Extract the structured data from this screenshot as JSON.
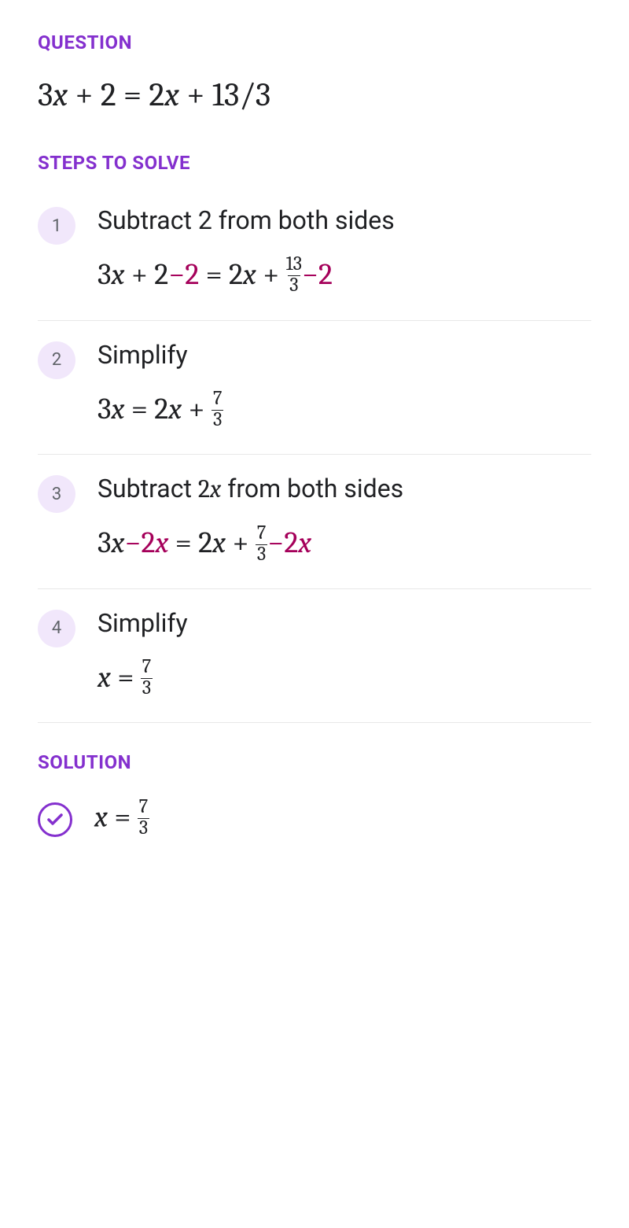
{
  "colors": {
    "label": "#8430ce",
    "text": "#202124",
    "highlight": "#a5005a",
    "badge_bg": "#f1e7fb",
    "badge_text": "#5f6368",
    "divider": "#e8e8e8",
    "check": "#8430ce",
    "background": "#ffffff"
  },
  "typography": {
    "label_fontsize": 24,
    "question_fontsize": 42,
    "step_title_fontsize": 32,
    "math_fontsize": 38,
    "badge_fontsize": 22
  },
  "question": {
    "label": "QUESTION",
    "math_parts": [
      {
        "t": "3",
        "hl": false
      },
      {
        "t": "x",
        "hl": false,
        "ital": true
      },
      {
        "t": " + 2 = 2",
        "hl": false
      },
      {
        "t": "x",
        "hl": false,
        "ital": true
      },
      {
        "t": " + 13/3",
        "hl": false
      }
    ]
  },
  "steps_label": "STEPS TO SOLVE",
  "steps": [
    {
      "n": "1",
      "title_parts": [
        {
          "t": "Subtract 2 from both sides",
          "math": false
        }
      ],
      "math_parts": [
        {
          "t": "3",
          "hl": false
        },
        {
          "t": "x",
          "hl": false,
          "ital": true
        },
        {
          "t": " + 2",
          "hl": false
        },
        {
          "t": "−2",
          "hl": true
        },
        {
          "t": " = 2",
          "hl": false
        },
        {
          "t": "x",
          "hl": false,
          "ital": true
        },
        {
          "t": " + ",
          "hl": false
        },
        {
          "frac": {
            "num": "13",
            "den": "3"
          },
          "hl": false
        },
        {
          "t": "−2",
          "hl": true
        }
      ]
    },
    {
      "n": "2",
      "title_parts": [
        {
          "t": "Simplify",
          "math": false
        }
      ],
      "math_parts": [
        {
          "t": "3",
          "hl": false
        },
        {
          "t": "x",
          "hl": false,
          "ital": true
        },
        {
          "t": " = 2",
          "hl": false
        },
        {
          "t": "x",
          "hl": false,
          "ital": true
        },
        {
          "t": " + ",
          "hl": false
        },
        {
          "frac": {
            "num": "7",
            "den": "3"
          },
          "hl": false
        }
      ]
    },
    {
      "n": "3",
      "title_parts": [
        {
          "t": "Subtract ",
          "math": false
        },
        {
          "t": "2",
          "math": true
        },
        {
          "t": "x",
          "math": true,
          "ital": true
        },
        {
          "t": " from both sides",
          "math": false
        }
      ],
      "math_parts": [
        {
          "t": "3",
          "hl": false
        },
        {
          "t": "x",
          "hl": false,
          "ital": true
        },
        {
          "t": "−2",
          "hl": true
        },
        {
          "t": "x",
          "hl": true,
          "ital": true
        },
        {
          "t": " = 2",
          "hl": false
        },
        {
          "t": "x",
          "hl": false,
          "ital": true
        },
        {
          "t": " + ",
          "hl": false
        },
        {
          "frac": {
            "num": "7",
            "den": "3"
          },
          "hl": false
        },
        {
          "t": "−2",
          "hl": true
        },
        {
          "t": "x",
          "hl": true,
          "ital": true
        }
      ]
    },
    {
      "n": "4",
      "title_parts": [
        {
          "t": "Simplify",
          "math": false
        }
      ],
      "math_parts": [
        {
          "t": "x",
          "hl": false,
          "ital": true
        },
        {
          "t": " = ",
          "hl": false
        },
        {
          "frac": {
            "num": "7",
            "den": "3"
          },
          "hl": false
        }
      ]
    }
  ],
  "solution": {
    "label": "SOLUTION",
    "math_parts": [
      {
        "t": "x",
        "hl": false,
        "ital": true
      },
      {
        "t": " = ",
        "hl": false
      },
      {
        "frac": {
          "num": "7",
          "den": "3"
        },
        "hl": false
      }
    ]
  }
}
